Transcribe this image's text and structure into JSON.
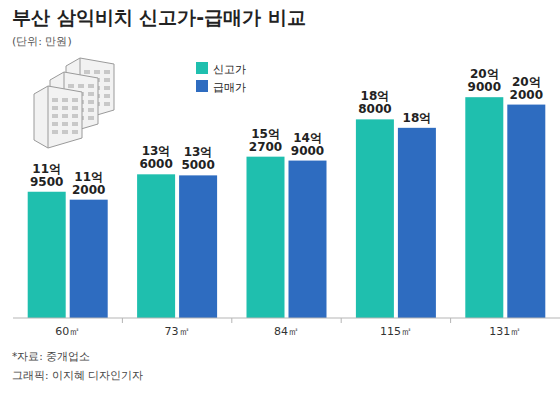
{
  "chart_data": {
    "type": "bar",
    "title": "부산 삼익비치 신고가-급매가 비교",
    "subtitle": "(단위: 만원)",
    "categories": [
      "60㎡",
      "73㎡",
      "84㎡",
      "115㎡",
      "131㎡"
    ],
    "series": [
      {
        "name": "신고가",
        "color": "#1fbfae",
        "values": [
          119500,
          136000,
          152700,
          188000,
          209000
        ],
        "value_labels": [
          "11억 9500",
          "13억 6000",
          "15억 2700",
          "18억 8000",
          "20억 9000"
        ]
      },
      {
        "name": "급매가",
        "color": "#2e6cc0",
        "values": [
          112000,
          135000,
          149000,
          180000,
          202000
        ],
        "value_labels": [
          "11억 2000",
          "13억 5000",
          "14억 9000",
          "18억",
          "20억 2000"
        ]
      }
    ],
    "ylim": [
      0,
      230000
    ],
    "tick_labels": "x",
    "data_labels": true,
    "legend": "top-left",
    "grid": false,
    "annotations": [
      "*자료: 중개업소",
      "그래픽: 이지혜 디자인기자"
    ]
  }
}
